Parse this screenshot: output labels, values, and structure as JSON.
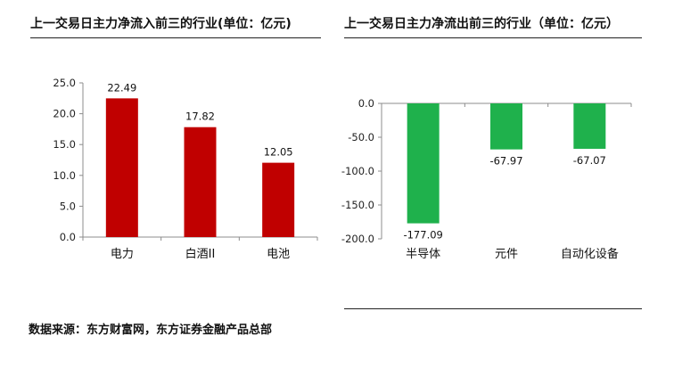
{
  "left_title": "上一交易日主力净流入前三的行业(单位：亿元)",
  "right_title": "上一交易日主力净流出前三的行业（单位：亿元）",
  "source": "数据来源：东方财富网，东方证券金融产品总部",
  "colors": {
    "inflow": "#c00000",
    "outflow": "#1fb14c",
    "axis": "#8c8c8c"
  },
  "chart_data": [
    {
      "type": "bar",
      "title": "上一交易日主力净流入前三的行业(单位：亿元)",
      "categories": [
        "电力",
        "白酒II",
        "电池"
      ],
      "values": [
        22.49,
        17.82,
        12.05
      ],
      "value_labels": [
        "22.49",
        "17.82",
        "12.05"
      ],
      "yticks": [
        "25.0",
        "20.0",
        "15.0",
        "10.0",
        "5.0",
        "0.0"
      ],
      "ylim": [
        0,
        25
      ],
      "xlabel": "",
      "ylabel": ""
    },
    {
      "type": "bar",
      "title": "上一交易日主力净流出前三的行业（单位：亿元）",
      "categories": [
        "半导体",
        "元件",
        "自动化设备"
      ],
      "values": [
        -177.09,
        -67.97,
        -67.07
      ],
      "value_labels": [
        "-177.09",
        "-67.97",
        "-67.07"
      ],
      "yticks": [
        "0.0",
        "-50.0",
        "-100.0",
        "-150.0",
        "-200.0"
      ],
      "ylim": [
        -200,
        0
      ],
      "xlabel": "",
      "ylabel": ""
    }
  ]
}
